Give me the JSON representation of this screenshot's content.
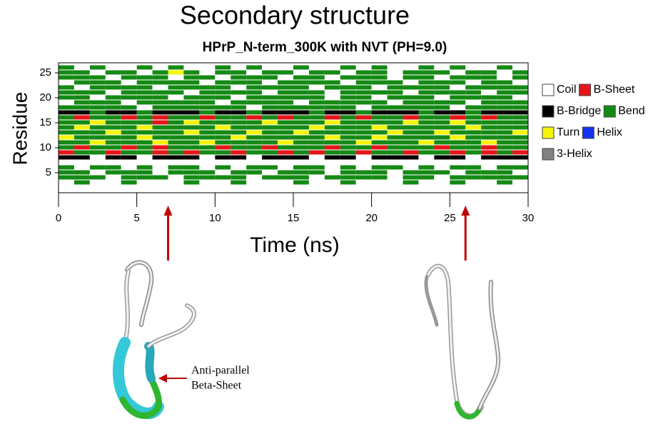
{
  "chart_data": {
    "type": "heatmap",
    "title": "Secondary structure",
    "subtitle": "HPrP_N-term_300K with NVT (PH=9.0)",
    "xlabel": "Time (ns)",
    "ylabel": "Residue",
    "xlim": [
      0,
      30
    ],
    "xticks": [
      0,
      5,
      10,
      15,
      20,
      25,
      30
    ],
    "ylim": [
      1,
      27
    ],
    "yticks": [
      5,
      10,
      15,
      20,
      25
    ],
    "bins": [
      0,
      1,
      2,
      3,
      4,
      5,
      6,
      7,
      8,
      9,
      10,
      11,
      12,
      13,
      14,
      15,
      16,
      17,
      18,
      19,
      20,
      21,
      22,
      23,
      24,
      25,
      26,
      27,
      28,
      29,
      30
    ],
    "residues": [
      26,
      25,
      24,
      23,
      22,
      21,
      20,
      19,
      18,
      17,
      16,
      15,
      14,
      13,
      12,
      11,
      10,
      9,
      8,
      7,
      6,
      5,
      4,
      3
    ],
    "states": [
      {
        "name": "Coil",
        "color": "#ffffff"
      },
      {
        "name": "B-Sheet",
        "color": "#e8141b"
      },
      {
        "name": "B-Bridge",
        "color": "#000000"
      },
      {
        "name": "Bend",
        "color": "#148a14"
      },
      {
        "name": "Turn",
        "color": "#f5f50a"
      },
      {
        "name": "Helix",
        "color": "#1432f0"
      },
      {
        "name": "3-Helix",
        "color": "#808080"
      }
    ],
    "z": [
      [
        3,
        0,
        3,
        0,
        0,
        3,
        0,
        3,
        0,
        0,
        3,
        0,
        3,
        0,
        0,
        3,
        0,
        0,
        3,
        0,
        3,
        0,
        0,
        3,
        0,
        3,
        0,
        0,
        3,
        0
      ],
      [
        3,
        3,
        0,
        3,
        3,
        0,
        3,
        4,
        3,
        0,
        3,
        3,
        0,
        3,
        3,
        0,
        3,
        3,
        0,
        3,
        3,
        0,
        3,
        3,
        3,
        0,
        3,
        3,
        0,
        3
      ],
      [
        3,
        3,
        3,
        0,
        3,
        3,
        3,
        0,
        3,
        3,
        0,
        3,
        3,
        3,
        0,
        3,
        3,
        0,
        3,
        3,
        3,
        0,
        3,
        3,
        0,
        3,
        3,
        3,
        0,
        3
      ],
      [
        0,
        3,
        3,
        3,
        0,
        3,
        3,
        3,
        3,
        0,
        3,
        3,
        3,
        0,
        3,
        3,
        3,
        3,
        0,
        3,
        3,
        3,
        0,
        3,
        3,
        3,
        0,
        3,
        3,
        0
      ],
      [
        3,
        0,
        3,
        3,
        3,
        3,
        0,
        3,
        3,
        3,
        3,
        0,
        3,
        3,
        3,
        3,
        0,
        3,
        3,
        3,
        0,
        3,
        3,
        3,
        3,
        0,
        3,
        3,
        3,
        3
      ],
      [
        3,
        3,
        3,
        0,
        3,
        3,
        3,
        3,
        0,
        3,
        3,
        3,
        3,
        0,
        3,
        3,
        3,
        0,
        3,
        3,
        3,
        3,
        0,
        3,
        3,
        3,
        3,
        0,
        3,
        3
      ],
      [
        3,
        3,
        0,
        3,
        3,
        3,
        3,
        0,
        3,
        3,
        3,
        0,
        3,
        3,
        3,
        3,
        3,
        0,
        3,
        3,
        0,
        3,
        3,
        3,
        0,
        3,
        3,
        3,
        3,
        0
      ],
      [
        0,
        3,
        3,
        3,
        0,
        3,
        3,
        3,
        3,
        3,
        0,
        3,
        3,
        3,
        3,
        0,
        3,
        3,
        3,
        3,
        3,
        0,
        3,
        3,
        3,
        3,
        0,
        3,
        3,
        3
      ],
      [
        3,
        3,
        3,
        3,
        3,
        0,
        3,
        3,
        3,
        3,
        3,
        3,
        0,
        3,
        3,
        3,
        3,
        3,
        3,
        0,
        3,
        3,
        3,
        3,
        3,
        0,
        3,
        3,
        3,
        3
      ],
      [
        2,
        2,
        3,
        2,
        2,
        3,
        2,
        2,
        2,
        3,
        2,
        2,
        3,
        2,
        2,
        2,
        3,
        2,
        2,
        3,
        2,
        2,
        2,
        3,
        2,
        2,
        3,
        2,
        2,
        2
      ],
      [
        3,
        1,
        3,
        3,
        1,
        3,
        1,
        3,
        3,
        1,
        3,
        3,
        1,
        3,
        1,
        3,
        3,
        1,
        3,
        1,
        3,
        3,
        1,
        3,
        3,
        1,
        3,
        1,
        3,
        3
      ],
      [
        3,
        3,
        4,
        3,
        3,
        3,
        1,
        3,
        4,
        3,
        3,
        3,
        3,
        4,
        3,
        3,
        3,
        4,
        3,
        3,
        3,
        3,
        4,
        3,
        3,
        4,
        3,
        3,
        3,
        3
      ],
      [
        3,
        4,
        3,
        3,
        3,
        4,
        3,
        3,
        3,
        3,
        4,
        3,
        3,
        3,
        3,
        3,
        4,
        3,
        3,
        3,
        4,
        3,
        3,
        3,
        3,
        3,
        4,
        3,
        3,
        3
      ],
      [
        3,
        3,
        3,
        4,
        3,
        3,
        3,
        3,
        4,
        3,
        3,
        3,
        4,
        3,
        3,
        4,
        3,
        3,
        3,
        3,
        3,
        4,
        3,
        3,
        4,
        3,
        3,
        3,
        3,
        4
      ],
      [
        4,
        3,
        3,
        3,
        3,
        4,
        3,
        3,
        3,
        3,
        3,
        4,
        3,
        3,
        3,
        3,
        3,
        4,
        3,
        3,
        4,
        3,
        3,
        3,
        3,
        4,
        3,
        3,
        3,
        3
      ],
      [
        3,
        3,
        4,
        3,
        3,
        3,
        4,
        3,
        3,
        4,
        3,
        3,
        3,
        3,
        4,
        3,
        3,
        3,
        3,
        4,
        3,
        3,
        3,
        4,
        3,
        3,
        3,
        4,
        3,
        3
      ],
      [
        3,
        1,
        3,
        3,
        1,
        3,
        1,
        3,
        3,
        3,
        1,
        3,
        3,
        1,
        3,
        3,
        3,
        1,
        3,
        3,
        1,
        3,
        3,
        3,
        1,
        3,
        3,
        1,
        3,
        3
      ],
      [
        1,
        3,
        3,
        1,
        3,
        3,
        1,
        3,
        1,
        3,
        3,
        1,
        3,
        3,
        1,
        3,
        1,
        3,
        3,
        1,
        3,
        3,
        1,
        3,
        3,
        1,
        3,
        1,
        3,
        1
      ],
      [
        2,
        2,
        0,
        2,
        2,
        0,
        2,
        2,
        2,
        0,
        2,
        2,
        0,
        2,
        2,
        2,
        0,
        2,
        2,
        0,
        2,
        2,
        2,
        0,
        2,
        2,
        0,
        2,
        2,
        2
      ],
      [
        0,
        0,
        0,
        0,
        0,
        0,
        0,
        0,
        0,
        0,
        0,
        0,
        0,
        0,
        0,
        0,
        0,
        0,
        0,
        0,
        0,
        0,
        0,
        0,
        0,
        0,
        0,
        0,
        0,
        0
      ],
      [
        3,
        0,
        3,
        3,
        0,
        3,
        0,
        3,
        3,
        0,
        3,
        0,
        3,
        3,
        0,
        3,
        3,
        0,
        3,
        0,
        3,
        3,
        0,
        3,
        0,
        3,
        3,
        0,
        3,
        3
      ],
      [
        3,
        3,
        0,
        3,
        3,
        3,
        0,
        3,
        3,
        3,
        0,
        3,
        3,
        0,
        3,
        3,
        3,
        0,
        3,
        3,
        3,
        0,
        3,
        3,
        3,
        0,
        3,
        3,
        3,
        0
      ],
      [
        3,
        3,
        3,
        0,
        3,
        3,
        3,
        0,
        3,
        3,
        3,
        3,
        0,
        3,
        3,
        3,
        0,
        3,
        3,
        3,
        3,
        0,
        3,
        3,
        0,
        3,
        3,
        3,
        3,
        3
      ],
      [
        0,
        3,
        0,
        0,
        3,
        0,
        0,
        0,
        3,
        0,
        0,
        3,
        0,
        0,
        0,
        3,
        0,
        0,
        3,
        0,
        0,
        0,
        3,
        0,
        0,
        3,
        0,
        0,
        3,
        0
      ]
    ],
    "snapshot_times": [
      7,
      26
    ],
    "annotation": [
      "Anti-parallel",
      "Beta-Sheet"
    ]
  }
}
